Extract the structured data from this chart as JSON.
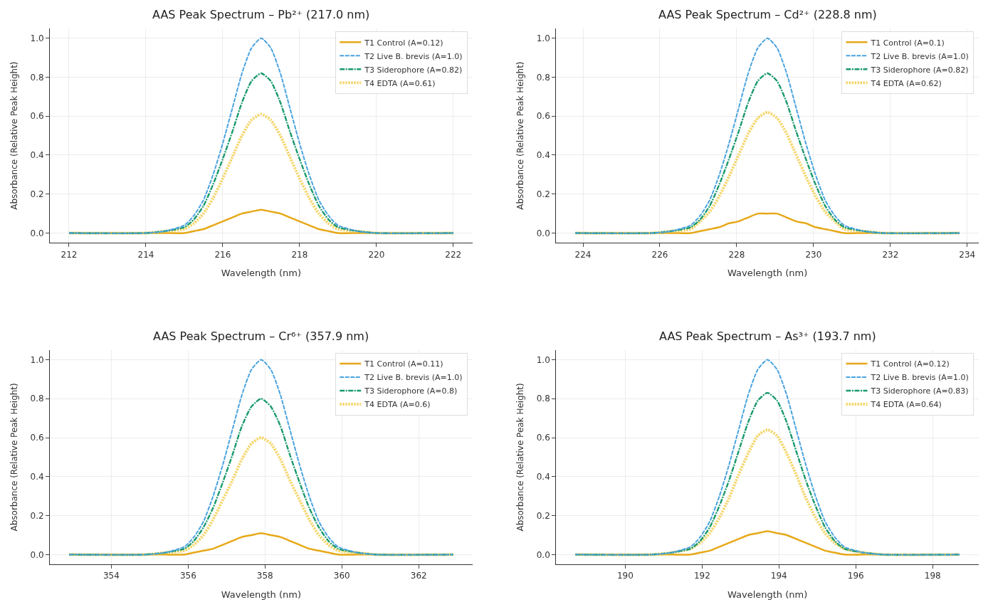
{
  "chart_data": [
    {
      "type": "line",
      "title": "AAS Peak Spectrum – Pb²⁺ (217.0 nm)",
      "xlabel": "Wavelength (nm)",
      "ylabel": "Absorbance (Relative Peak Height)",
      "x": [
        212,
        214,
        214.5,
        215,
        215.25,
        215.5,
        215.75,
        216,
        216.25,
        216.5,
        216.75,
        217,
        217.25,
        217.5,
        217.75,
        218,
        218.25,
        218.5,
        218.75,
        219,
        219.5,
        220,
        222
      ],
      "xlim": [
        211.5,
        222.5
      ],
      "xticks": [
        212,
        214,
        216,
        218,
        220,
        222
      ],
      "ylim": [
        -0.05,
        1.05
      ],
      "yticks": [
        {
          "value": 0,
          "label": "0.0"
        },
        {
          "value": 0.2,
          "label": "0.2"
        },
        {
          "value": 0.4,
          "label": "0.4"
        },
        {
          "value": 0.6,
          "label": "0.6"
        },
        {
          "value": 0.8,
          "label": "0.8"
        },
        {
          "value": 1,
          "label": "1.0"
        }
      ],
      "grid": true,
      "legend": "top right",
      "series": [
        {
          "name": "T1 Control (A=0.12)",
          "color": "#e6a817",
          "line_style": "solid",
          "values": [
            0,
            0,
            0,
            0,
            0.01,
            0.02,
            0.04,
            0.06,
            0.08,
            0.1,
            0.11,
            0.12,
            0.11,
            0.1,
            0.08,
            0.06,
            0.04,
            0.02,
            0.01,
            0,
            0,
            0,
            0
          ]
        },
        {
          "name": "T2 Live B. brevis (A=1.0)",
          "color": "#4aa3df",
          "line_style": "dashed",
          "values": [
            0,
            0,
            0.01,
            0.04,
            0.09,
            0.17,
            0.3,
            0.46,
            0.64,
            0.82,
            0.95,
            1,
            0.95,
            0.82,
            0.64,
            0.46,
            0.3,
            0.17,
            0.09,
            0.04,
            0.01,
            0,
            0
          ]
        },
        {
          "name": "T3 Siderophore (A=0.82)",
          "color": "#1a9a6c",
          "line_style": "dashdot",
          "values": [
            0,
            0,
            0.01,
            0.03,
            0.07,
            0.14,
            0.25,
            0.38,
            0.52,
            0.67,
            0.78,
            0.82,
            0.78,
            0.67,
            0.52,
            0.38,
            0.25,
            0.14,
            0.07,
            0.03,
            0.01,
            0,
            0
          ]
        },
        {
          "name": "T4 EDTA (A=0.61)",
          "color": "#f5d76e",
          "line_style": "dotted",
          "values": [
            0,
            0,
            0.01,
            0.02,
            0.05,
            0.1,
            0.18,
            0.28,
            0.39,
            0.5,
            0.58,
            0.61,
            0.58,
            0.5,
            0.39,
            0.28,
            0.18,
            0.1,
            0.05,
            0.02,
            0.01,
            0,
            0
          ]
        }
      ]
    },
    {
      "type": "line",
      "title": "AAS Peak Spectrum – Cd²⁺ (228.8 nm)",
      "xlabel": "Wavelength (nm)",
      "ylabel": "Absorbance (Relative Peak Height)",
      "x": [
        223.8,
        225.8,
        226.3,
        226.8,
        227.05,
        227.3,
        227.55,
        227.8,
        228.05,
        228.3,
        228.55,
        228.8,
        229.05,
        229.3,
        229.55,
        229.8,
        230.05,
        230.3,
        230.55,
        230.8,
        231.3,
        231.8,
        233.8
      ],
      "xlim": [
        223.3,
        234.3
      ],
      "xticks": [
        224,
        226,
        228,
        230,
        232,
        234
      ],
      "ylim": [
        -0.05,
        1.05
      ],
      "yticks": [
        {
          "value": 0,
          "label": "0.0"
        },
        {
          "value": 0.2,
          "label": "0.2"
        },
        {
          "value": 0.4,
          "label": "0.4"
        },
        {
          "value": 0.6,
          "label": "0.6"
        },
        {
          "value": 0.8,
          "label": "0.8"
        },
        {
          "value": 1,
          "label": "1.0"
        }
      ],
      "grid": true,
      "legend": "top right",
      "series": [
        {
          "name": "T1 Control (A=0.1)",
          "color": "#e6a817",
          "line_style": "solid",
          "values": [
            0,
            0,
            0,
            0,
            0.01,
            0.02,
            0.03,
            0.05,
            0.06,
            0.08,
            0.1,
            0.1,
            0.1,
            0.08,
            0.06,
            0.05,
            0.03,
            0.02,
            0.01,
            0,
            0,
            0,
            0
          ]
        },
        {
          "name": "T2 Live B. brevis (A=1.0)",
          "color": "#4aa3df",
          "line_style": "dashed",
          "values": [
            0,
            0,
            0.01,
            0.04,
            0.09,
            0.17,
            0.3,
            0.46,
            0.64,
            0.82,
            0.95,
            1,
            0.95,
            0.82,
            0.64,
            0.46,
            0.3,
            0.17,
            0.09,
            0.04,
            0.01,
            0,
            0
          ]
        },
        {
          "name": "T3 Siderophore (A=0.82)",
          "color": "#1a9a6c",
          "line_style": "dashdot",
          "values": [
            0,
            0,
            0.01,
            0.03,
            0.07,
            0.14,
            0.25,
            0.38,
            0.52,
            0.67,
            0.78,
            0.82,
            0.78,
            0.67,
            0.52,
            0.38,
            0.25,
            0.14,
            0.07,
            0.03,
            0.01,
            0,
            0
          ]
        },
        {
          "name": "T4 EDTA (A=0.62)",
          "color": "#f5d76e",
          "line_style": "dotted",
          "values": [
            0,
            0,
            0.01,
            0.02,
            0.06,
            0.11,
            0.19,
            0.29,
            0.4,
            0.51,
            0.59,
            0.62,
            0.59,
            0.51,
            0.4,
            0.29,
            0.19,
            0.11,
            0.06,
            0.02,
            0.01,
            0,
            0
          ]
        }
      ]
    },
    {
      "type": "line",
      "title": "AAS Peak Spectrum – Cr⁶⁺ (357.9 nm)",
      "xlabel": "Wavelength (nm)",
      "ylabel": "Absorbance (Relative Peak Height)",
      "x": [
        352.9,
        354.9,
        355.4,
        355.9,
        356.15,
        356.4,
        356.65,
        356.9,
        357.15,
        357.4,
        357.65,
        357.9,
        358.15,
        358.4,
        358.65,
        358.9,
        359.15,
        359.4,
        359.65,
        359.9,
        360.4,
        360.9,
        362.9
      ],
      "xlim": [
        352.4,
        363.4
      ],
      "xticks": [
        354,
        356,
        358,
        360,
        362
      ],
      "ylim": [
        -0.05,
        1.05
      ],
      "yticks": [
        {
          "value": 0,
          "label": "0.0"
        },
        {
          "value": 0.2,
          "label": "0.2"
        },
        {
          "value": 0.4,
          "label": "0.4"
        },
        {
          "value": 0.6,
          "label": "0.6"
        },
        {
          "value": 0.8,
          "label": "0.8"
        },
        {
          "value": 1,
          "label": "1.0"
        }
      ],
      "grid": true,
      "legend": "top right",
      "series": [
        {
          "name": "T1 Control (A=0.11)",
          "color": "#e6a817",
          "line_style": "solid",
          "values": [
            0,
            0,
            0,
            0,
            0.01,
            0.02,
            0.03,
            0.05,
            0.07,
            0.09,
            0.1,
            0.11,
            0.1,
            0.09,
            0.07,
            0.05,
            0.03,
            0.02,
            0.01,
            0,
            0,
            0,
            0
          ]
        },
        {
          "name": "T2 Live B. brevis (A=1.0)",
          "color": "#4aa3df",
          "line_style": "dashed",
          "values": [
            0,
            0,
            0.01,
            0.04,
            0.09,
            0.17,
            0.3,
            0.46,
            0.64,
            0.82,
            0.95,
            1,
            0.95,
            0.82,
            0.64,
            0.46,
            0.3,
            0.17,
            0.09,
            0.04,
            0.01,
            0,
            0
          ]
        },
        {
          "name": "T3 Siderophore (A=0.8)",
          "color": "#1a9a6c",
          "line_style": "dashdot",
          "values": [
            0,
            0,
            0.01,
            0.03,
            0.07,
            0.14,
            0.24,
            0.37,
            0.51,
            0.66,
            0.76,
            0.8,
            0.76,
            0.66,
            0.51,
            0.37,
            0.24,
            0.14,
            0.07,
            0.03,
            0.01,
            0,
            0
          ]
        },
        {
          "name": "T4 EDTA (A=0.6)",
          "color": "#f5d76e",
          "line_style": "dotted",
          "values": [
            0,
            0,
            0.01,
            0.02,
            0.05,
            0.1,
            0.18,
            0.28,
            0.38,
            0.49,
            0.57,
            0.6,
            0.57,
            0.49,
            0.38,
            0.28,
            0.18,
            0.1,
            0.05,
            0.02,
            0.01,
            0,
            0
          ]
        }
      ]
    },
    {
      "type": "line",
      "title": "AAS Peak Spectrum – As³⁺ (193.7 nm)",
      "xlabel": "Wavelength (nm)",
      "ylabel": "Absorbance (Relative Peak Height)",
      "x": [
        188.7,
        190.7,
        191.2,
        191.7,
        191.95,
        192.2,
        192.45,
        192.7,
        192.95,
        193.2,
        193.45,
        193.7,
        193.95,
        194.2,
        194.45,
        194.7,
        194.95,
        195.2,
        195.45,
        195.7,
        196.2,
        196.7,
        198.7
      ],
      "xlim": [
        188.2,
        199.2
      ],
      "xticks": [
        190,
        192,
        194,
        196,
        198
      ],
      "ylim": [
        -0.05,
        1.05
      ],
      "yticks": [
        {
          "value": 0,
          "label": "0.0"
        },
        {
          "value": 0.2,
          "label": "0.2"
        },
        {
          "value": 0.4,
          "label": "0.4"
        },
        {
          "value": 0.6,
          "label": "0.6"
        },
        {
          "value": 0.8,
          "label": "0.8"
        },
        {
          "value": 1,
          "label": "1.0"
        }
      ],
      "grid": true,
      "legend": "top right",
      "series": [
        {
          "name": "T1 Control (A=0.12)",
          "color": "#e6a817",
          "line_style": "solid",
          "values": [
            0,
            0,
            0,
            0,
            0.01,
            0.02,
            0.04,
            0.06,
            0.08,
            0.1,
            0.11,
            0.12,
            0.11,
            0.1,
            0.08,
            0.06,
            0.04,
            0.02,
            0.01,
            0,
            0,
            0,
            0
          ]
        },
        {
          "name": "T2 Live B. brevis (A=1.0)",
          "color": "#4aa3df",
          "line_style": "dashed",
          "values": [
            0,
            0,
            0.01,
            0.04,
            0.09,
            0.17,
            0.3,
            0.46,
            0.64,
            0.82,
            0.95,
            1,
            0.95,
            0.82,
            0.64,
            0.46,
            0.3,
            0.17,
            0.09,
            0.04,
            0.01,
            0,
            0
          ]
        },
        {
          "name": "T3 Siderophore (A=0.83)",
          "color": "#1a9a6c",
          "line_style": "dashdot",
          "values": [
            0,
            0,
            0.01,
            0.03,
            0.07,
            0.14,
            0.25,
            0.38,
            0.53,
            0.68,
            0.79,
            0.83,
            0.79,
            0.68,
            0.53,
            0.38,
            0.25,
            0.14,
            0.07,
            0.03,
            0.01,
            0,
            0
          ]
        },
        {
          "name": "T4 EDTA (A=0.64)",
          "color": "#f5d76e",
          "line_style": "dotted",
          "values": [
            0,
            0,
            0.01,
            0.03,
            0.06,
            0.11,
            0.19,
            0.29,
            0.41,
            0.52,
            0.61,
            0.64,
            0.61,
            0.52,
            0.41,
            0.29,
            0.19,
            0.11,
            0.06,
            0.03,
            0.01,
            0,
            0
          ]
        }
      ]
    }
  ]
}
